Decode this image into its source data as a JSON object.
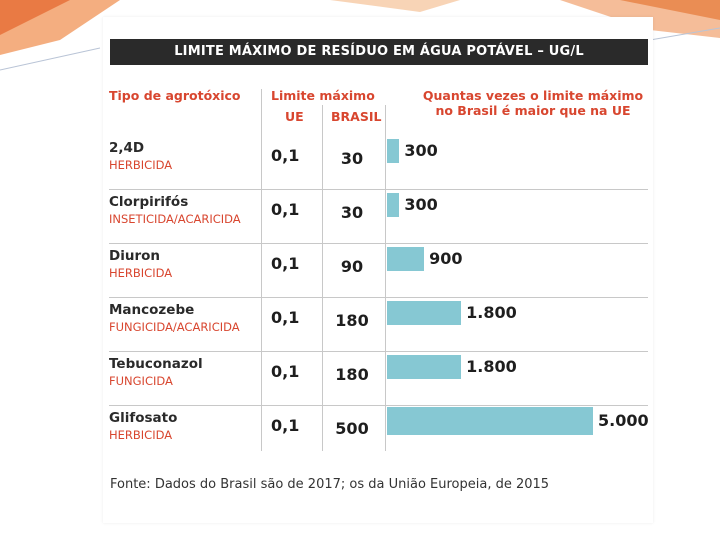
{
  "colors": {
    "accent": "#d8462f",
    "bar": "#86c8d3",
    "title_bg": "#2a2a2a"
  },
  "chart_data": {
    "type": "table",
    "title": "LIMITE MÁXIMO DE RESÍDUO EM ÁGUA POTÁVEL – UG/L",
    "headers": {
      "type_col": "Tipo de agrotóxico",
      "limit_col": "Limite máximo",
      "ue_col": "UE",
      "brasil_col": "BRASIL",
      "ratio_col_line1": "Quantas vezes o limite máximo",
      "ratio_col_line2": "no Brasil é maior que na UE"
    },
    "rows": [
      {
        "name": "2,4D",
        "type": "HERBICIDA",
        "ue": "0,1",
        "brasil": "30",
        "ratio": 300,
        "ratio_label": "300"
      },
      {
        "name": "Clorpirifós",
        "type": "INSETICIDA/ACARICIDA",
        "ue": "0,1",
        "brasil": "30",
        "ratio": 300,
        "ratio_label": "300"
      },
      {
        "name": "Diuron",
        "type": "HERBICIDA",
        "ue": "0,1",
        "brasil": "90",
        "ratio": 900,
        "ratio_label": "900"
      },
      {
        "name": "Mancozebe",
        "type": "FUNGICIDA/ACARICIDA",
        "ue": "0,1",
        "brasil": "180",
        "ratio": 1800,
        "ratio_label": "1.800"
      },
      {
        "name": "Tebuconazol",
        "type": "FUNGICIDA",
        "ue": "0,1",
        "brasil": "180",
        "ratio": 1800,
        "ratio_label": "1.800"
      },
      {
        "name": "Glifosato",
        "type": "HERBICIDA",
        "ue": "0,1",
        "brasil": "500",
        "ratio": 5000,
        "ratio_label": "5.000"
      }
    ],
    "source": "Fonte: Dados do Brasil são de 2017; os da União Europeia, de 2015"
  }
}
